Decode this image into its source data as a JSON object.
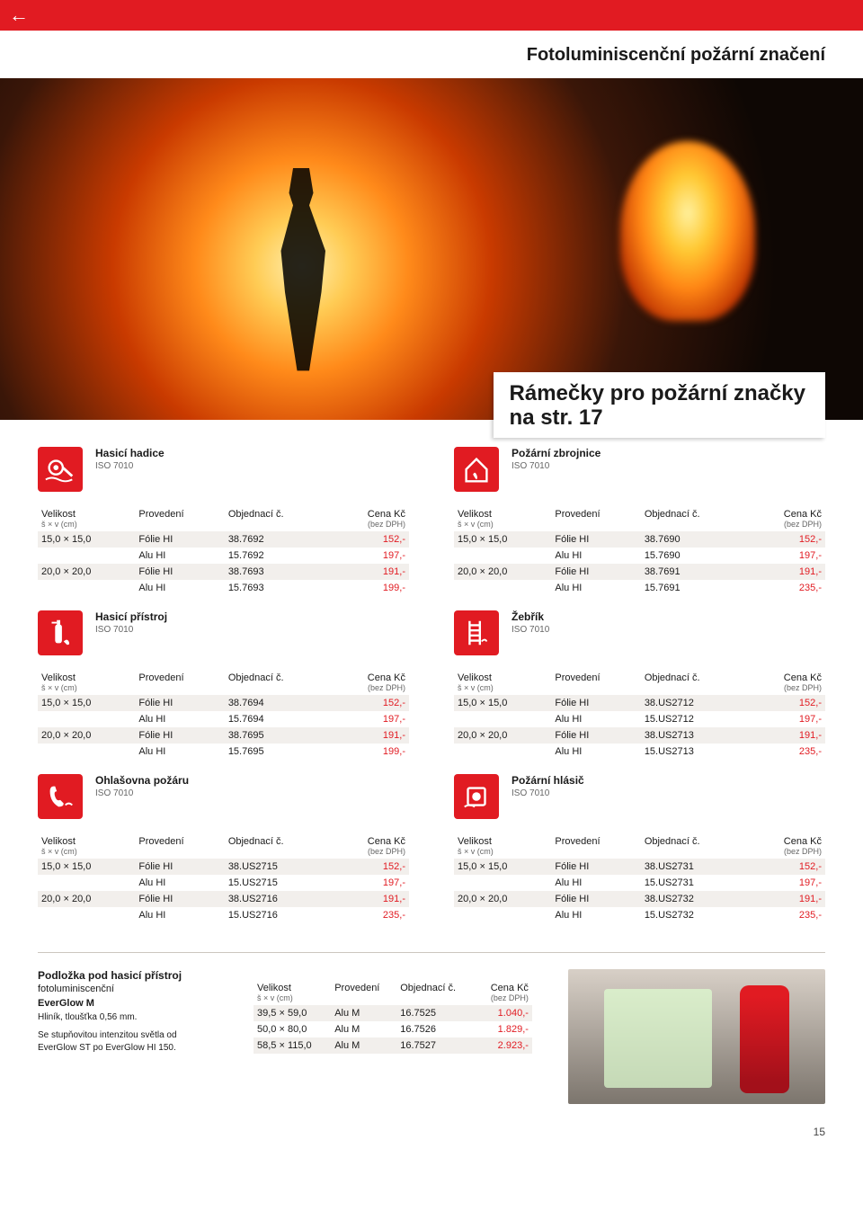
{
  "page_title": "Fotoluminiscenční požární značení",
  "callout_l1": "Rámečky pro požární značky",
  "callout_l2": "na str. 17",
  "iso": "ISO 7010",
  "thead": {
    "velikost": "Velikost",
    "velikost_sub": "š × v (cm)",
    "provedeni": "Provedení",
    "objednaci": "Objednací č.",
    "cena": "Cena Kč",
    "cena_sub": "(bez DPH)"
  },
  "products": [
    [
      {
        "title": "Hasicí hadice",
        "icon": "hose",
        "rows": [
          [
            "15,0 × 15,0",
            "Fólie HI",
            "38.7692",
            "152,-"
          ],
          [
            "",
            "Alu HI",
            "15.7692",
            "197,-"
          ],
          [
            "20,0 × 20,0",
            "Fólie HI",
            "38.7693",
            "191,-"
          ],
          [
            "",
            "Alu HI",
            "15.7693",
            "199,-"
          ]
        ]
      },
      {
        "title": "Požární zbrojnice",
        "icon": "house",
        "rows": [
          [
            "15,0 × 15,0",
            "Fólie HI",
            "38.7690",
            "152,-"
          ],
          [
            "",
            "Alu HI",
            "15.7690",
            "197,-"
          ],
          [
            "20,0 × 20,0",
            "Fólie HI",
            "38.7691",
            "191,-"
          ],
          [
            "",
            "Alu HI",
            "15.7691",
            "235,-"
          ]
        ]
      }
    ],
    [
      {
        "title": "Hasicí přístroj",
        "icon": "ext",
        "rows": [
          [
            "15,0 × 15,0",
            "Fólie HI",
            "38.7694",
            "152,-"
          ],
          [
            "",
            "Alu HI",
            "15.7694",
            "197,-"
          ],
          [
            "20,0 × 20,0",
            "Fólie HI",
            "38.7695",
            "191,-"
          ],
          [
            "",
            "Alu HI",
            "15.7695",
            "199,-"
          ]
        ]
      },
      {
        "title": "Žebřík",
        "icon": "ladder",
        "rows": [
          [
            "15,0 × 15,0",
            "Fólie HI",
            "38.US2712",
            "152,-"
          ],
          [
            "",
            "Alu HI",
            "15.US2712",
            "197,-"
          ],
          [
            "20,0 × 20,0",
            "Fólie HI",
            "38.US2713",
            "191,-"
          ],
          [
            "",
            "Alu HI",
            "15.US2713",
            "235,-"
          ]
        ]
      }
    ],
    [
      {
        "title": "Ohlašovna požáru",
        "icon": "phone",
        "rows": [
          [
            "15,0 × 15,0",
            "Fólie HI",
            "38.US2715",
            "152,-"
          ],
          [
            "",
            "Alu HI",
            "15.US2715",
            "197,-"
          ],
          [
            "20,0 × 20,0",
            "Fólie HI",
            "38.US2716",
            "191,-"
          ],
          [
            "",
            "Alu HI",
            "15.US2716",
            "235,-"
          ]
        ]
      },
      {
        "title": "Požární hlásič",
        "icon": "alarm",
        "rows": [
          [
            "15,0 × 15,0",
            "Fólie HI",
            "38.US2731",
            "152,-"
          ],
          [
            "",
            "Alu HI",
            "15.US2731",
            "197,-"
          ],
          [
            "20,0 × 20,0",
            "Fólie HI",
            "38.US2732",
            "191,-"
          ],
          [
            "",
            "Alu HI",
            "15.US2732",
            "235,-"
          ]
        ]
      }
    ]
  ],
  "bottom": {
    "title": "Podložka pod hasicí přístroj",
    "sub1": "fotoluminiscenční",
    "sub2": "EverGlow M",
    "sub3": "Hliník, tloušťka 0,56 mm.",
    "sub4": "Se stupňovitou intenzitou světla od EverGlow ST po EverGlow HI 150.",
    "rows": [
      [
        "39,5 × 59,0",
        "Alu M",
        "16.7525",
        "1.040,-"
      ],
      [
        "50,0 × 80,0",
        "Alu M",
        "16.7526",
        "1.829,-"
      ],
      [
        "58,5 × 115,0",
        "Alu M",
        "16.7527",
        "2.923,-"
      ]
    ]
  },
  "pagenum": "15",
  "colors": {
    "brand_red": "#e11b22",
    "row_alt_bg": "#f2efec",
    "text_muted": "#666666"
  }
}
